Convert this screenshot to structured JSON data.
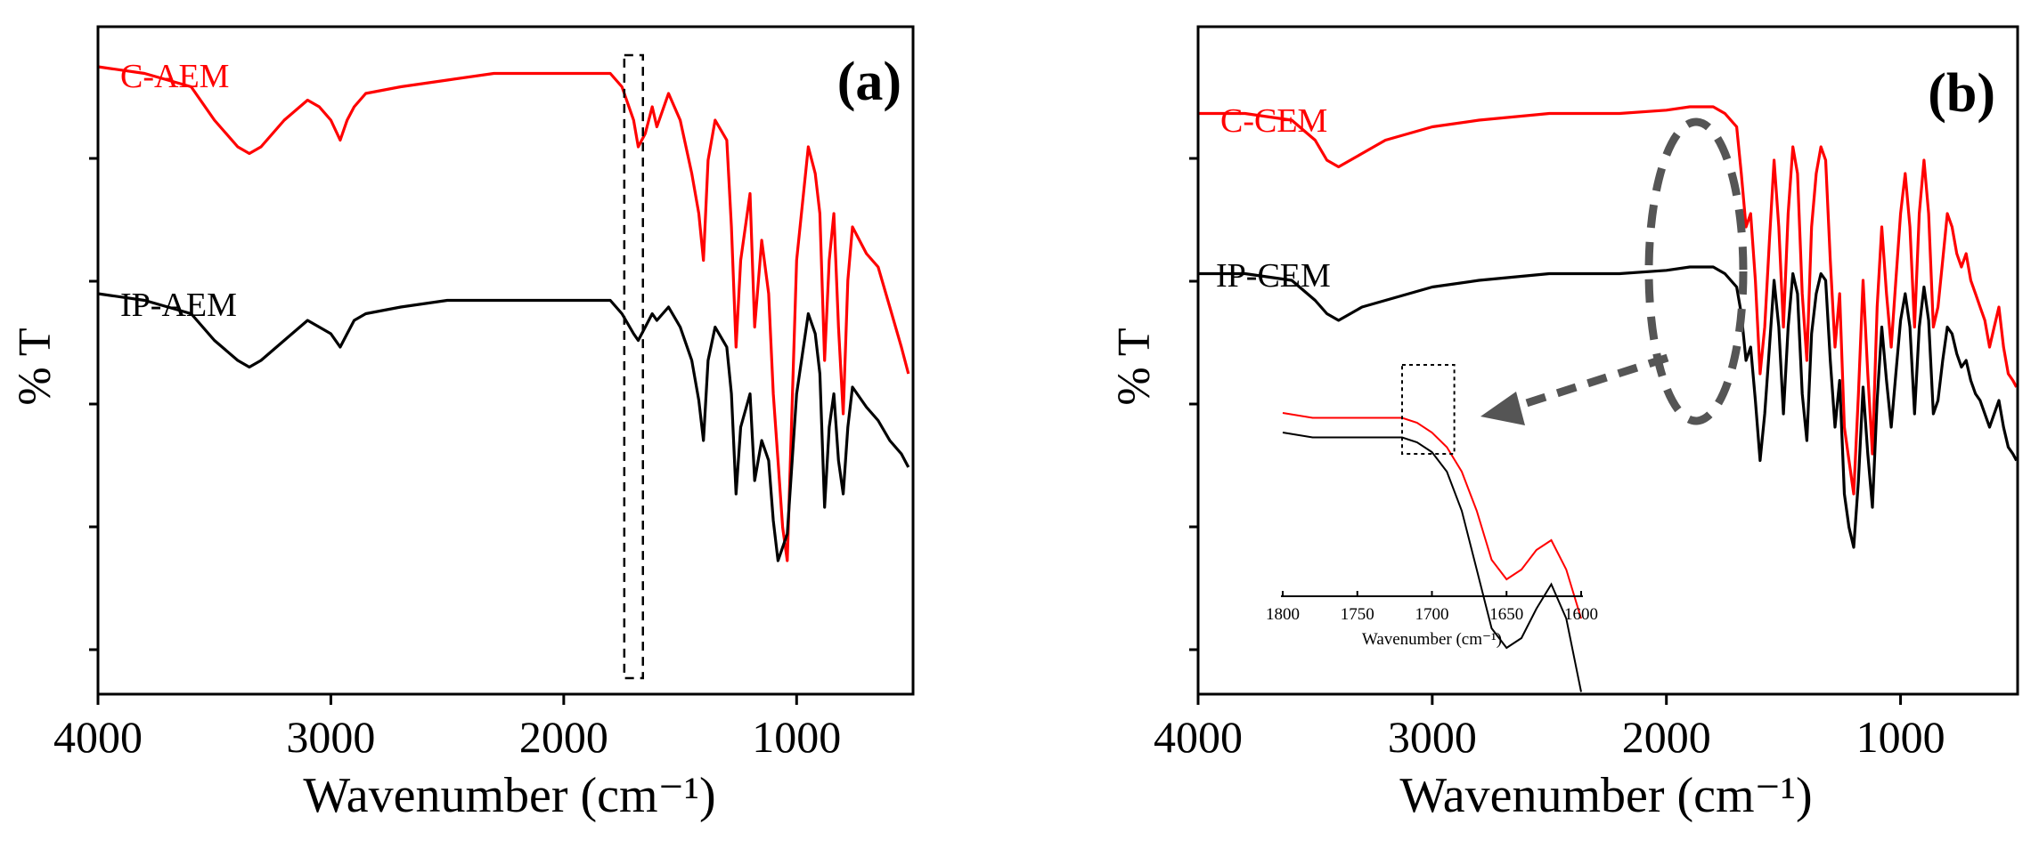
{
  "chart_data": [
    {
      "panel_label": "(a)",
      "type": "line",
      "xlabel": "Wavenumber (cm⁻¹)",
      "ylabel": "% T",
      "xlim": [
        4000,
        500
      ],
      "x_reversed": true,
      "x_ticks": [
        4000,
        3000,
        2000,
        1000
      ],
      "x_tick_labels": [
        "4000",
        "3000",
        "2000",
        "1000"
      ],
      "y_ticks_unlabeled": 5,
      "highlight_box": {
        "style": "dashed",
        "x_range": [
          1740,
          1660
        ]
      },
      "series": [
        {
          "name": "C-AEM",
          "color": "#ff0000",
          "x": [
            4000,
            3800,
            3600,
            3500,
            3400,
            3350,
            3300,
            3200,
            3100,
            3050,
            3000,
            2960,
            2930,
            2900,
            2850,
            2700,
            2500,
            2300,
            2100,
            2000,
            1800,
            1750,
            1700,
            1680,
            1650,
            1620,
            1600,
            1550,
            1500,
            1450,
            1420,
            1400,
            1380,
            1350,
            1300,
            1280,
            1260,
            1240,
            1200,
            1180,
            1150,
            1120,
            1100,
            1080,
            1060,
            1040,
            1000,
            950,
            920,
            900,
            880,
            860,
            840,
            820,
            800,
            780,
            760,
            700,
            650,
            600,
            550,
            520
          ],
          "y": [
            94,
            93,
            91,
            86,
            82,
            81,
            82,
            86,
            89,
            88,
            86,
            83,
            86,
            88,
            90,
            91,
            92,
            93,
            93,
            93,
            93,
            91,
            86,
            82,
            84,
            88,
            85,
            90,
            86,
            78,
            72,
            65,
            80,
            86,
            83,
            70,
            52,
            65,
            75,
            55,
            68,
            60,
            45,
            35,
            25,
            20,
            65,
            82,
            78,
            72,
            50,
            65,
            72,
            55,
            42,
            62,
            70,
            66,
            64,
            58,
            52,
            48
          ]
        },
        {
          "name": "IP-AEM",
          "color": "#000000",
          "x": [
            4000,
            3800,
            3600,
            3500,
            3400,
            3350,
            3300,
            3200,
            3100,
            3050,
            3000,
            2960,
            2930,
            2900,
            2850,
            2700,
            2500,
            2300,
            2100,
            2000,
            1800,
            1750,
            1700,
            1680,
            1650,
            1620,
            1600,
            1550,
            1500,
            1450,
            1420,
            1400,
            1380,
            1350,
            1300,
            1280,
            1260,
            1240,
            1200,
            1180,
            1150,
            1120,
            1100,
            1080,
            1060,
            1040,
            1000,
            950,
            920,
            900,
            880,
            860,
            840,
            820,
            800,
            780,
            760,
            700,
            650,
            600,
            550,
            520
          ],
          "y": [
            60,
            59,
            57,
            53,
            50,
            49,
            50,
            53,
            56,
            55,
            54,
            52,
            54,
            56,
            57,
            58,
            59,
            59,
            59,
            59,
            59,
            57,
            54,
            53,
            55,
            57,
            56,
            58,
            55,
            50,
            44,
            38,
            50,
            55,
            52,
            45,
            30,
            40,
            45,
            32,
            38,
            35,
            26,
            20,
            22,
            24,
            45,
            57,
            54,
            48,
            28,
            40,
            45,
            35,
            30,
            40,
            46,
            43,
            41,
            38,
            36,
            34
          ]
        }
      ]
    },
    {
      "panel_label": "(b)",
      "type": "line",
      "xlabel": "Wavenumber (cm⁻¹)",
      "ylabel": "% T",
      "xlim": [
        4000,
        500
      ],
      "x_reversed": true,
      "x_ticks": [
        4000,
        3000,
        2000,
        1000
      ],
      "x_tick_labels": [
        "4000",
        "3000",
        "2000",
        "1000"
      ],
      "y_ticks_unlabeled": 5,
      "highlight_ellipse": {
        "style": "dashed",
        "x_range": [
          2020,
          1720
        ]
      },
      "series": [
        {
          "name": "C-CEM",
          "color": "#ff0000",
          "x": [
            4000,
            3800,
            3600,
            3500,
            3450,
            3400,
            3350,
            3300,
            3200,
            3000,
            2800,
            2500,
            2200,
            2000,
            1900,
            1800,
            1750,
            1700,
            1680,
            1660,
            1640,
            1620,
            1600,
            1580,
            1560,
            1540,
            1520,
            1500,
            1480,
            1460,
            1440,
            1420,
            1400,
            1380,
            1360,
            1340,
            1320,
            1300,
            1280,
            1260,
            1240,
            1220,
            1200,
            1180,
            1160,
            1140,
            1120,
            1100,
            1080,
            1060,
            1040,
            1020,
            1000,
            980,
            960,
            940,
            920,
            900,
            880,
            860,
            840,
            820,
            800,
            780,
            760,
            740,
            720,
            700,
            680,
            660,
            640,
            620,
            600,
            580,
            560,
            540,
            520,
            505
          ],
          "y": [
            87,
            87,
            86,
            83,
            80,
            79,
            80,
            81,
            83,
            85,
            86,
            87,
            87,
            87.5,
            88,
            88,
            87,
            85,
            78,
            70,
            72,
            62,
            48,
            55,
            68,
            80,
            70,
            55,
            72,
            82,
            78,
            60,
            50,
            70,
            78,
            82,
            80,
            65,
            52,
            60,
            40,
            35,
            30,
            45,
            62,
            48,
            36,
            58,
            70,
            60,
            52,
            62,
            72,
            78,
            70,
            55,
            72,
            80,
            72,
            55,
            58,
            65,
            72,
            70,
            66,
            64,
            66,
            62,
            60,
            58,
            56,
            52,
            55,
            58,
            52,
            48,
            47,
            46
          ]
        },
        {
          "name": "IP-CEM",
          "color": "#000000",
          "x": [
            4000,
            3800,
            3600,
            3500,
            3450,
            3400,
            3350,
            3300,
            3200,
            3000,
            2800,
            2500,
            2200,
            2000,
            1900,
            1800,
            1750,
            1700,
            1680,
            1660,
            1640,
            1620,
            1600,
            1580,
            1560,
            1540,
            1520,
            1500,
            1480,
            1460,
            1440,
            1420,
            1400,
            1380,
            1360,
            1340,
            1320,
            1300,
            1280,
            1260,
            1240,
            1220,
            1200,
            1180,
            1160,
            1140,
            1120,
            1100,
            1080,
            1060,
            1040,
            1020,
            1000,
            980,
            960,
            940,
            920,
            900,
            880,
            860,
            840,
            820,
            800,
            780,
            760,
            740,
            720,
            700,
            680,
            660,
            640,
            620,
            600,
            580,
            560,
            540,
            520,
            505
          ],
          "y": [
            63,
            63,
            62,
            59,
            57,
            56,
            57,
            58,
            59,
            61,
            62,
            63,
            63,
            63.5,
            64,
            64,
            63,
            61,
            57,
            50,
            52,
            44,
            35,
            42,
            52,
            62,
            55,
            42,
            55,
            63,
            60,
            45,
            38,
            54,
            60,
            63,
            62,
            50,
            40,
            47,
            30,
            25,
            22,
            32,
            46,
            36,
            28,
            44,
            55,
            47,
            40,
            48,
            56,
            60,
            55,
            42,
            55,
            61,
            56,
            42,
            44,
            50,
            55,
            54,
            51,
            49,
            50,
            47,
            45,
            44,
            42,
            40,
            42,
            44,
            40,
            37,
            36,
            35
          ]
        }
      ],
      "inset": {
        "type": "line",
        "xlabel": "Wavenumber (cm⁻¹)",
        "xlim": [
          1800,
          1600
        ],
        "x_reversed": true,
        "x_ticks": [
          1800,
          1750,
          1700,
          1650,
          1600
        ],
        "x_tick_labels": [
          "1800",
          "1750",
          "1700",
          "1650",
          "1600"
        ],
        "highlight_box": {
          "style": "dotted",
          "x_range": [
            1720,
            1685
          ]
        },
        "series": [
          {
            "name": "C-CEM",
            "color": "#ff0000",
            "x": [
              1800,
              1780,
              1760,
              1740,
              1720,
              1710,
              1700,
              1690,
              1680,
              1670,
              1660,
              1650,
              1640,
              1630,
              1620,
              1610,
              1600
            ],
            "y": [
              92,
              91,
              91,
              91,
              91,
              90,
              88,
              85,
              80,
              72,
              62,
              58,
              60,
              64,
              66,
              60,
              50
            ]
          },
          {
            "name": "IP-CEM",
            "color": "#000000",
            "x": [
              1800,
              1780,
              1760,
              1740,
              1720,
              1710,
              1700,
              1690,
              1680,
              1670,
              1660,
              1650,
              1640,
              1630,
              1620,
              1610,
              1600
            ],
            "y": [
              88,
              87,
              87,
              87,
              87,
              86,
              84,
              80,
              72,
              60,
              48,
              44,
              46,
              52,
              57,
              50,
              35
            ]
          }
        ]
      }
    }
  ]
}
